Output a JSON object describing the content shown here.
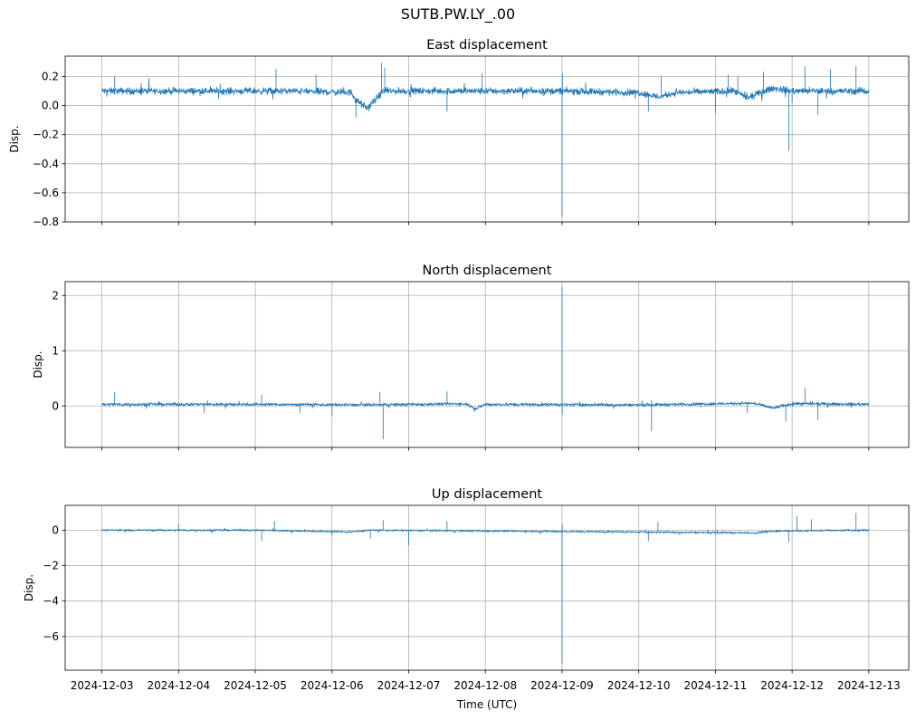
{
  "suptitle": "SUTB.PW.LY_.00",
  "xlabel": "Time (UTC)",
  "colors": {
    "series": "#1f77b4",
    "grid": "#b0b0b0",
    "axes": "#000000"
  },
  "chart_data": [
    {
      "type": "line",
      "title": "East displacement",
      "ylabel": "Disp.",
      "xlim": [
        "2024-12-02T12:30",
        "2024-12-13T12:30"
      ],
      "ylim": [
        -0.8,
        0.34
      ],
      "yticks": [
        0.2,
        0.0,
        -0.2,
        -0.4,
        -0.6,
        -0.8
      ],
      "ytick_labels": [
        "0.2",
        "0.0",
        "−0.2",
        "−0.4",
        "−0.6",
        "−0.8"
      ],
      "show_xtick_labels": false,
      "grid": true,
      "series": [
        {
          "baseline": [
            [
              "2024-12-03T00:00",
              0.1
            ],
            [
              "2024-12-05T12:00",
              0.1
            ],
            [
              "2024-12-06T06:00",
              0.09
            ],
            [
              "2024-12-06T08:00",
              0.03
            ],
            [
              "2024-12-06T11:00",
              -0.02
            ],
            [
              "2024-12-06T14:00",
              0.05
            ],
            [
              "2024-12-06T16:00",
              0.1
            ],
            [
              "2024-12-09T00:00",
              0.1
            ],
            [
              "2024-12-10T00:00",
              0.09
            ],
            [
              "2024-12-10T06:00",
              0.06
            ],
            [
              "2024-12-10T12:00",
              0.09
            ],
            [
              "2024-12-11T06:00",
              0.1
            ],
            [
              "2024-12-11T10:00",
              0.05
            ],
            [
              "2024-12-11T13:00",
              0.08
            ],
            [
              "2024-12-11T18:00",
              0.12
            ],
            [
              "2024-12-12T00:00",
              0.1
            ],
            [
              "2024-12-13T00:00",
              0.1
            ]
          ],
          "noise": 0.025,
          "spikes": [
            [
              "2024-12-03T04:00",
              0.2
            ],
            [
              "2024-12-05T06:30",
              0.25
            ],
            [
              "2024-12-05T19:00",
              0.21
            ],
            [
              "2024-12-06T07:30",
              -0.08
            ],
            [
              "2024-12-06T15:30",
              0.29
            ],
            [
              "2024-12-06T16:30",
              0.26
            ],
            [
              "2024-12-07T12:00",
              -0.04
            ],
            [
              "2024-12-07T23:00",
              0.22
            ],
            [
              "2024-12-09T00:00",
              -0.76
            ],
            [
              "2024-12-09T00:05",
              0.22
            ],
            [
              "2024-12-10T03:00",
              -0.04
            ],
            [
              "2024-12-10T07:00",
              0.2
            ],
            [
              "2024-12-11T00:00",
              -0.05
            ],
            [
              "2024-12-11T04:00",
              0.21
            ],
            [
              "2024-12-11T07:00",
              0.2
            ],
            [
              "2024-12-11T15:00",
              0.23
            ],
            [
              "2024-12-11T23:00",
              -0.31
            ],
            [
              "2024-12-12T00:00",
              0.02
            ],
            [
              "2024-12-12T04:00",
              0.27
            ],
            [
              "2024-12-12T08:00",
              -0.06
            ],
            [
              "2024-12-12T12:00",
              0.25
            ],
            [
              "2024-12-12T20:00",
              0.27
            ]
          ]
        }
      ]
    },
    {
      "type": "line",
      "title": "North displacement",
      "ylabel": "Disp.",
      "xlim": [
        "2024-12-02T12:30",
        "2024-12-13T12:30"
      ],
      "ylim": [
        -0.75,
        2.25
      ],
      "yticks": [
        2,
        1,
        0
      ],
      "ytick_labels": [
        "2",
        "1",
        "0"
      ],
      "show_xtick_labels": false,
      "grid": true,
      "series": [
        {
          "baseline": [
            [
              "2024-12-03T00:00",
              0.03
            ],
            [
              "2024-12-05T00:00",
              0.03
            ],
            [
              "2024-12-06T12:00",
              0.02
            ],
            [
              "2024-12-07T18:00",
              0.04
            ],
            [
              "2024-12-07T21:00",
              -0.05
            ],
            [
              "2024-12-08T00:00",
              0.03
            ],
            [
              "2024-12-10T00:00",
              0.02
            ],
            [
              "2024-12-11T12:00",
              0.05
            ],
            [
              "2024-12-11T18:00",
              -0.04
            ],
            [
              "2024-12-12T00:00",
              0.04
            ],
            [
              "2024-12-13T00:00",
              0.03
            ]
          ],
          "noise": 0.03,
          "spikes": [
            [
              "2024-12-03T04:00",
              0.25
            ],
            [
              "2024-12-04T08:00",
              -0.12
            ],
            [
              "2024-12-05T02:00",
              0.2
            ],
            [
              "2024-12-05T14:00",
              -0.12
            ],
            [
              "2024-12-06T00:00",
              -0.18
            ],
            [
              "2024-12-06T15:00",
              0.25
            ],
            [
              "2024-12-06T16:00",
              -0.6
            ],
            [
              "2024-12-07T12:00",
              0.26
            ],
            [
              "2024-12-09T00:00",
              2.15
            ],
            [
              "2024-12-09T00:03",
              -0.15
            ],
            [
              "2024-12-10T04:00",
              -0.45
            ],
            [
              "2024-12-11T10:00",
              -0.12
            ],
            [
              "2024-12-11T22:00",
              -0.28
            ],
            [
              "2024-12-12T04:00",
              0.33
            ],
            [
              "2024-12-12T08:00",
              -0.25
            ]
          ]
        }
      ]
    },
    {
      "type": "line",
      "title": "Up displacement",
      "ylabel": "Disp.",
      "xlim": [
        "2024-12-02T12:30",
        "2024-12-13T12:30"
      ],
      "ylim": [
        -7.9,
        1.4
      ],
      "yticks": [
        0,
        -2,
        -4,
        -6
      ],
      "ytick_labels": [
        "0",
        "−2",
        "−4",
        "−6"
      ],
      "xticks": [
        "2024-12-03",
        "2024-12-04",
        "2024-12-05",
        "2024-12-06",
        "2024-12-07",
        "2024-12-08",
        "2024-12-09",
        "2024-12-10",
        "2024-12-11",
        "2024-12-12",
        "2024-12-13"
      ],
      "show_xtick_labels": true,
      "grid": true,
      "series": [
        {
          "baseline": [
            [
              "2024-12-03T00:00",
              0.0
            ],
            [
              "2024-12-05T00:00",
              0.0
            ],
            [
              "2024-12-06T06:00",
              -0.1
            ],
            [
              "2024-12-06T12:00",
              0.0
            ],
            [
              "2024-12-11T12:00",
              -0.15
            ],
            [
              "2024-12-11T18:00",
              -0.05
            ],
            [
              "2024-12-13T00:00",
              0.0
            ]
          ],
          "noise": 0.06,
          "spikes": [
            [
              "2024-12-04T00:00",
              0.35
            ],
            [
              "2024-12-05T02:00",
              -0.6
            ],
            [
              "2024-12-05T06:00",
              0.5
            ],
            [
              "2024-12-06T00:00",
              -0.3
            ],
            [
              "2024-12-06T12:00",
              -0.45
            ],
            [
              "2024-12-06T16:00",
              0.55
            ],
            [
              "2024-12-07T00:00",
              -0.85
            ],
            [
              "2024-12-07T12:00",
              0.5
            ],
            [
              "2024-12-09T00:00",
              -7.5
            ],
            [
              "2024-12-09T00:04",
              0.3
            ],
            [
              "2024-12-10T03:00",
              -0.6
            ],
            [
              "2024-12-10T06:00",
              0.45
            ],
            [
              "2024-12-11T23:00",
              -0.65
            ],
            [
              "2024-12-12T01:30",
              0.8
            ],
            [
              "2024-12-12T06:00",
              0.6
            ],
            [
              "2024-12-12T20:00",
              0.95
            ]
          ]
        }
      ]
    }
  ]
}
